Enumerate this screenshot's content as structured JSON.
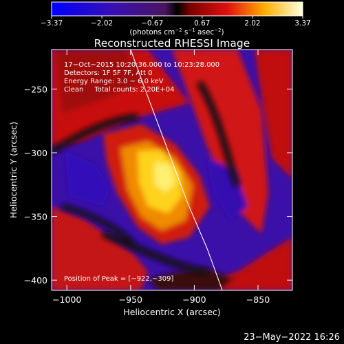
{
  "chart_data": {
    "type": "heatmap",
    "title": "Reconstructed RHESSI Image",
    "xlabel": "Heliocentric X (arcsec)",
    "ylabel": "Heliocentric Y (arcsec)",
    "xlim": [
      -1012,
      -823
    ],
    "ylim": [
      -408,
      -219
    ],
    "xticks": [
      -1000,
      -950,
      -900,
      -850
    ],
    "yticks": [
      -250,
      -300,
      -350,
      -400
    ],
    "xtick_labels": [
      "−1000",
      "−950",
      "−900",
      "−850"
    ],
    "ytick_labels": [
      "−250",
      "−300",
      "−350",
      "−400"
    ],
    "colorbar": {
      "range": [
        -3.37,
        3.37
      ],
      "ticks": [
        "−3.37",
        "−2.02",
        "−0.67",
        "0.67",
        "2.02",
        "3.37"
      ],
      "unit_text": "(photons cm",
      "unit_sup1": "−2",
      "unit_mid": " s",
      "unit_sup2": "−1",
      "unit_mid2": " asec",
      "unit_sup3": "−2",
      "unit_end": ")"
    },
    "peak": {
      "x": -922,
      "y": -309
    },
    "annotations": {
      "time": "17−Oct−2015 10:20:36.000 to 10:23:28.000",
      "detectors": "Detectors: 1F 5F 7F, Att 0",
      "energy": "Energy Range: 3.0 − 6.0 keV",
      "clean": "Clean     Total counts: 2.20E+04",
      "peak_label": "Position of Peak = [−922,−309]"
    },
    "limb_curve": [
      [
        -950,
        -219
      ],
      [
        -935,
        -260
      ],
      [
        -920,
        -300
      ],
      [
        -905,
        -340
      ],
      [
        -890,
        -375
      ],
      [
        -878,
        -408
      ]
    ]
  },
  "footer": {
    "date": "23−May−2022 16:26"
  },
  "colors": {
    "background": "#000000",
    "text": "#ffffff"
  }
}
